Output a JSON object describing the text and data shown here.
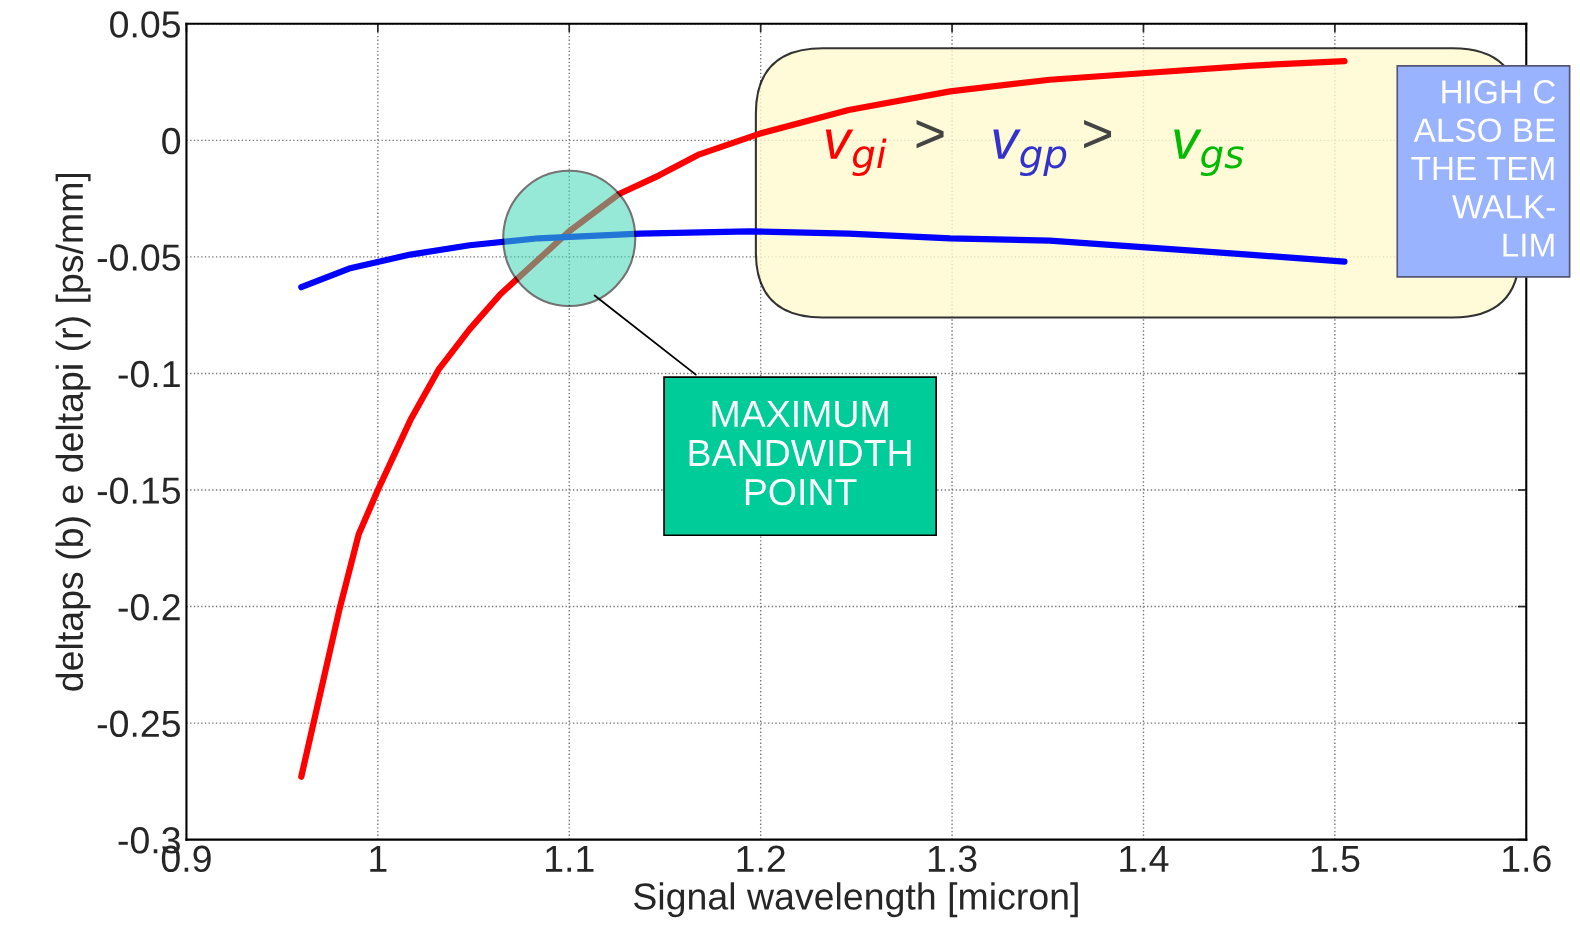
{
  "chart_data": {
    "type": "line",
    "xlabel": "Signal wavelength [micron]",
    "ylabel": "deltaps (b) e deltapi (r) [ps/mm]",
    "series": [
      {
        "color": "#ff0000",
        "x": [
          0.96,
          0.98,
          0.99,
          1.0,
          1.017,
          1.032,
          1.048,
          1.064,
          1.084,
          1.1,
          1.126,
          1.147,
          1.168,
          1.2,
          1.246,
          1.299,
          1.351,
          1.403,
          1.455,
          1.505
        ],
        "values": [
          -0.273,
          -0.201,
          -0.169,
          -0.15,
          -0.12,
          -0.098,
          -0.081,
          -0.066,
          -0.051,
          -0.039,
          -0.023,
          -0.015,
          -0.006,
          0.003,
          0.013,
          0.021,
          0.026,
          0.029,
          0.032,
          0.034
        ]
      },
      {
        "color": "#0000ff",
        "x": [
          0.96,
          0.985,
          1.017,
          1.048,
          1.084,
          1.137,
          1.194,
          1.246,
          1.299,
          1.351,
          1.403,
          1.455,
          1.505
        ],
        "values": [
          -0.063,
          -0.055,
          -0.049,
          -0.045,
          -0.042,
          -0.04,
          -0.039,
          -0.04,
          -0.042,
          -0.043,
          -0.046,
          -0.049,
          -0.052
        ]
      }
    ],
    "xlim": [
      0.9,
      1.6
    ],
    "xticks": [
      0.9,
      1,
      1.1,
      1.2,
      1.3,
      1.4,
      1.5,
      1.6
    ],
    "ylim": [
      -0.3,
      0.05
    ],
    "yticks": [
      -0.3,
      -0.25,
      -0.2,
      -0.15,
      -0.1,
      -0.05,
      0,
      0.05
    ],
    "grid": true,
    "line_style": "solid",
    "marker": "none",
    "annotations": [
      "MAXIMUM\nBANDWIDTH\nPOINT",
      "v$_{gi}$ > v$_{gp}$ > v$_{gs}$",
      "HIGH C\nALSO BE\nTHE TEM\nWALK-\nLIM"
    ]
  }
}
